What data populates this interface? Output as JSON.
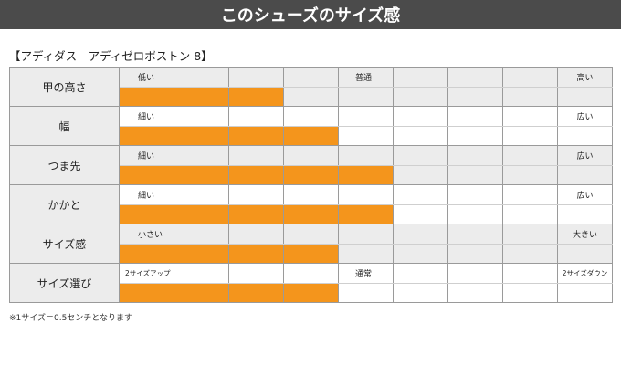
{
  "header": {
    "title": "このシューズのサイズ感"
  },
  "subtitle": "【アディダス　アディゼロボストン 8】",
  "rows": [
    {
      "label": "甲の高さ",
      "left": "低い",
      "center": "普通",
      "right": "高い",
      "fill_cells": 3,
      "shaded": true
    },
    {
      "label": "幅",
      "left": "細い",
      "center": "",
      "right": "広い",
      "fill_cells": 4,
      "shaded": false
    },
    {
      "label": "つま先",
      "left": "細い",
      "center": "",
      "right": "広い",
      "fill_cells": 5,
      "shaded": true
    },
    {
      "label": "かかと",
      "left": "細い",
      "center": "",
      "right": "広い",
      "fill_cells": 5,
      "shaded": false
    },
    {
      "label": "サイズ感",
      "left": "小さい",
      "center": "",
      "right": "大きい",
      "fill_cells": 4,
      "shaded": true
    },
    {
      "label": "サイズ選び",
      "left": "2サイズアップ",
      "center": "通常",
      "right": "2サイズダウン",
      "fill_cells": 4,
      "shaded": false
    }
  ],
  "scale_cells": 9,
  "fill_color": "#f4951c",
  "footnote": "※1サイズ＝0.5センチとなります"
}
